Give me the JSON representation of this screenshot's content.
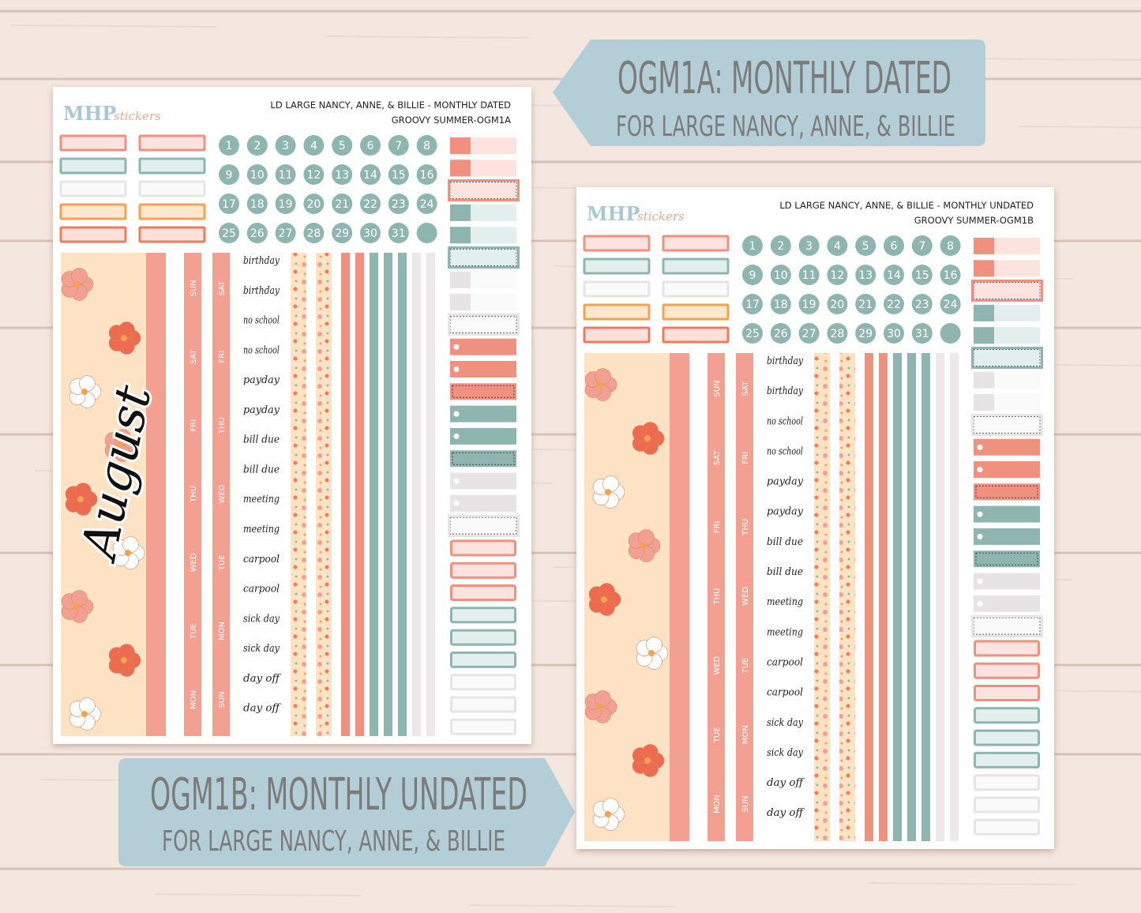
{
  "banners": [
    {
      "title": "OGM1A: MONTHLY DATED",
      "subtitle": "FOR LARGE NANCY, ANNE, & BILLIE"
    },
    {
      "title": "OGM1B: MONTHLY UNDATED",
      "subtitle": "FOR LARGE NANCY, ANNE, & BILLIE"
    }
  ],
  "sheets": [
    {
      "logo": "MHP",
      "logo_script": "stickers",
      "header": [
        "LD LARGE NANCY, ANNE, & BILLIE - MONTHLY DATED",
        "GROOVY SUMMER-OGM1A"
      ],
      "dates": [
        1,
        2,
        3,
        4,
        5,
        6,
        7,
        8,
        9,
        10,
        11,
        12,
        13,
        14,
        15,
        16,
        17,
        18,
        19,
        20,
        21,
        22,
        23,
        24,
        25,
        26,
        27,
        28,
        29,
        30,
        31
      ],
      "month": "August",
      "days_1": [
        "SUN",
        "SAT",
        "FRI",
        "THU",
        "WED",
        "TUE",
        "MON"
      ],
      "days_2": [
        "SAT",
        "FRI",
        "THU",
        "WED",
        "TUE",
        "MON",
        "SUN"
      ],
      "words": [
        "birthday",
        "birthday",
        "no school",
        "no school",
        "payday",
        "payday",
        "bill due",
        "bill due",
        "meeting",
        "meeting",
        "carpool",
        "carpool",
        "sick day",
        "sick day",
        "day off",
        "day off"
      ]
    },
    {
      "logo": "MHP",
      "logo_script": "stickers",
      "header": [
        "LD LARGE NANCY, ANNE, & BILLIE - MONTHLY UNDATED",
        "GROOVY SUMMER-OGM1B"
      ],
      "dates": [
        1,
        2,
        3,
        4,
        5,
        6,
        7,
        8,
        9,
        10,
        11,
        12,
        13,
        14,
        15,
        16,
        17,
        18,
        19,
        20,
        21,
        22,
        23,
        24,
        25,
        26,
        27,
        28,
        29,
        30,
        31
      ],
      "days_1": [
        "SUN",
        "SAT",
        "FRI",
        "THU",
        "WED",
        "TUE",
        "MON"
      ],
      "days_2": [
        "SAT",
        "FRI",
        "THU",
        "WED",
        "TUE",
        "MON",
        "SUN"
      ],
      "words": [
        "birthday",
        "birthday",
        "no school",
        "no school",
        "payday",
        "payday",
        "bill due",
        "bill due",
        "meeting",
        "meeting",
        "carpool",
        "carpool",
        "sick day",
        "sick day",
        "day off",
        "day off"
      ]
    }
  ]
}
